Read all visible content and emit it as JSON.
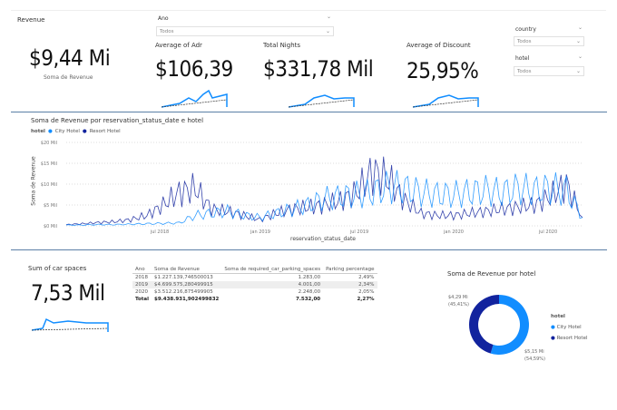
{
  "revenue_card": {
    "title": "Revenue",
    "value": "$9,44 Mi",
    "label": "Soma de Revenue"
  },
  "slicers": {
    "ano": {
      "label": "Ano",
      "value": "Todos"
    },
    "country": {
      "label": "country",
      "value": "Todos"
    },
    "hotel": {
      "label": "hotel",
      "value": "Todos"
    }
  },
  "kpis": [
    {
      "title": "Average of Adr",
      "value": "$106,39"
    },
    {
      "title": "Total Nights",
      "value": "$331,78 Mil"
    },
    {
      "title": "Average of Discount",
      "value": "25,95%"
    }
  ],
  "colors": {
    "city": "#118dff",
    "resort": "#12239e",
    "separator": "#5b7fa6"
  },
  "chart_data": [
    {
      "type": "line",
      "title": "Soma de Revenue por reservation_status_date e hotel",
      "xlabel": "reservation_status_date",
      "ylabel": "Soma de Revenue",
      "legend_title": "hotel",
      "legend_placement": "top-left",
      "y_ticks": [
        "$0 Mil",
        "$5 Mil",
        "$10 Mil",
        "$15 Mil",
        "$20 Mil"
      ],
      "ylim": [
        0,
        20
      ],
      "x_ticks": [
        "jul 2018",
        "jan 2019",
        "jul 2019",
        "jan 2020",
        "jul 2020"
      ],
      "x": [
        "2018-01",
        "2018-02",
        "2018-03",
        "2018-04",
        "2018-05",
        "2018-06",
        "2018-07",
        "2018-08",
        "2018-09",
        "2018-10",
        "2018-11",
        "2018-12",
        "2019-01",
        "2019-02",
        "2019-03",
        "2019-04",
        "2019-05",
        "2019-06",
        "2019-07",
        "2019-08",
        "2019-09",
        "2019-10",
        "2019-11",
        "2019-12",
        "2020-01",
        "2020-02",
        "2020-03",
        "2020-04",
        "2020-05",
        "2020-06",
        "2020-07",
        "2020-08",
        "2020-09"
      ],
      "series": [
        {
          "name": "City Hotel",
          "values": [
            0.2,
            0.2,
            0.3,
            0.3,
            0.4,
            0.5,
            0.6,
            0.7,
            2.5,
            3,
            3.5,
            2.5,
            2,
            3,
            4,
            5,
            6.5,
            7,
            7.5,
            8,
            9.5,
            9,
            8,
            7.5,
            7.5,
            8,
            8.5,
            8,
            9,
            8.5,
            9,
            8.5,
            2
          ]
        },
        {
          "name": "Resort Hotel",
          "values": [
            0.3,
            0.5,
            0.8,
            1,
            1.5,
            2.5,
            5,
            8,
            9,
            4,
            3.5,
            2.5,
            1.5,
            3,
            4,
            4.5,
            5,
            6,
            8,
            13,
            11,
            6,
            3,
            2.5,
            2.5,
            3,
            3.5,
            4,
            4.5,
            5,
            7,
            10,
            2
          ]
        }
      ],
      "grid": true
    },
    {
      "type": "pie",
      "title": "Soma de Revenue por hotel",
      "legend_title": "hotel",
      "legend_placement": "right",
      "categories": [
        "City Hotel",
        "Resort Hotel"
      ],
      "values": [
        5.15,
        4.29
      ],
      "labels": [
        "$5,15 Mi",
        "$4,29 Mi"
      ],
      "percents": [
        "(54,59%)",
        "(45,41%)"
      ]
    }
  ],
  "car_card": {
    "title": "Sum of car spaces",
    "value": "7,53 Mil"
  },
  "table": {
    "headers": [
      "Ano",
      "Soma de Revenue",
      "Soma de required_car_parking_spaces",
      "Parking percentage"
    ],
    "rows": [
      [
        "2018",
        "$1.227.139,746500013",
        "1.283,00",
        "2,49%"
      ],
      [
        "2019",
        "$4.699.575,280499915",
        "4.001,00",
        "2,34%"
      ],
      [
        "2020",
        "$3.512.216,875499905",
        "2.248,00",
        "2,05%"
      ]
    ],
    "total": [
      "Total",
      "$9.438.931,902499832",
      "7.532,00",
      "2,27%"
    ]
  }
}
